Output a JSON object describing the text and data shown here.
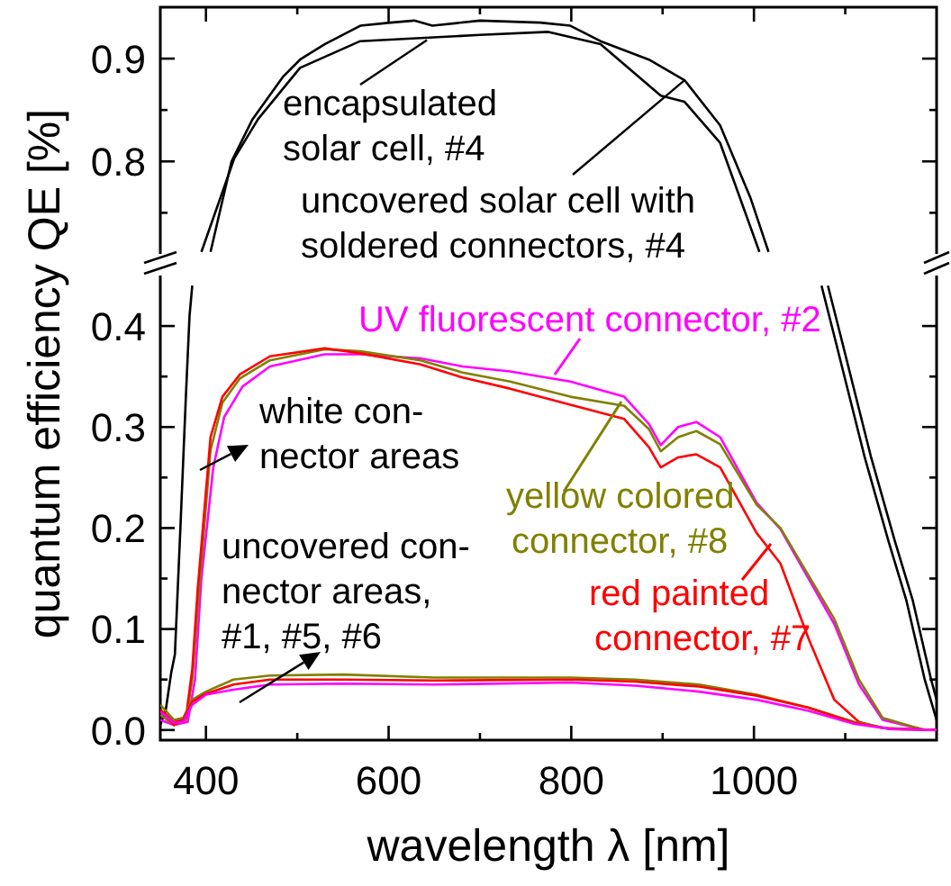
{
  "chart_data": [
    {
      "type": "line",
      "xlim": [
        350,
        1200
      ],
      "ylim": [
        0.71,
        0.95
      ],
      "tick_labels": "y",
      "xticks": [
        400,
        {
          "value": 500,
          "label": null
        },
        600,
        {
          "value": 700,
          "label": null
        },
        800,
        {
          "value": 900,
          "label": null
        },
        1000,
        {
          "value": 1100,
          "label": null
        }
      ],
      "yticks": [
        {
          "value": 0.75,
          "label": null
        },
        0.8,
        {
          "value": 0.85,
          "label": null
        },
        0.9
      ],
      "series": [
        {
          "color": "#000000",
          "x": [
            395,
            431,
            457,
            503,
            569,
            635,
            700,
            775,
            832,
            898,
            924,
            963,
            1006
          ],
          "values": [
            0.712,
            0.803,
            0.841,
            0.891,
            0.917,
            0.92,
            0.923,
            0.926,
            0.914,
            0.864,
            0.858,
            0.818,
            0.712
          ]
        },
        {
          "color": "#000000",
          "x": [
            405,
            428,
            451,
            484,
            503,
            530,
            569,
            602,
            628,
            648,
            700,
            766,
            799,
            832,
            885,
            924,
            963,
            996,
            1016
          ],
          "values": [
            0.712,
            0.8,
            0.841,
            0.882,
            0.899,
            0.914,
            0.932,
            0.935,
            0.937,
            0.932,
            0.937,
            0.935,
            0.932,
            0.917,
            0.899,
            0.879,
            0.835,
            0.765,
            0.712
          ]
        }
      ],
      "annotations": [
        {
          "text": "encapsulated\nsolar cell, #4",
          "x": 642,
          "y": 0.918
        },
        {
          "text": "uncovered solar cell with\nsoldered connectors, #4",
          "x": 924,
          "y": 0.879
        }
      ]
    },
    {
      "type": "line",
      "xlim": [
        350,
        1200
      ],
      "ylim": [
        -0.01,
        0.45
      ],
      "xlabel": "wavelength λ [nm]",
      "ylabel": "quantum efficiency QE [%]",
      "xticks": [
        400,
        {
          "value": 500,
          "label": null
        },
        600,
        {
          "value": 700,
          "label": null
        },
        800,
        {
          "value": 900,
          "label": null
        },
        1000,
        {
          "value": 1100,
          "label": null
        }
      ],
      "yticks": [
        {
          "value": 0,
          "label": "0.0"
        },
        {
          "value": 0.05,
          "label": null
        },
        0.1,
        {
          "value": 0.15,
          "label": null
        },
        0.2,
        {
          "value": 0.25,
          "label": null
        },
        0.3,
        {
          "value": 0.35,
          "label": null
        },
        0.4
      ],
      "series": [
        {
          "color": "#000000",
          "x": [
            350,
            356,
            362,
            366,
            372,
            378,
            382,
            385,
            700,
            1074,
            1088,
            1121,
            1147,
            1167,
            1187,
            1200
          ],
          "values": [
            0.005,
            0.02,
            0.057,
            0.075,
            0.2,
            0.33,
            0.41,
            0.44,
            null,
            0.44,
            0.39,
            0.271,
            0.188,
            0.128,
            0.05,
            0.01
          ]
        },
        {
          "color": "#000000",
          "x": [
            1081,
            1095,
            1128,
            1154,
            1174,
            1194,
            1200
          ],
          "values": [
            0.44,
            0.39,
            0.271,
            0.188,
            0.128,
            0.05,
            0.03
          ]
        },
        {
          "name": "UV fluorescent connector, #2",
          "color": "#ff00ff",
          "x": [
            350,
            365,
            380,
            388,
            395,
            408,
            420,
            440,
            470,
            530,
            569,
            635,
            681,
            733,
            799,
            858,
            885,
            898,
            917,
            937,
            963,
            1003,
            1029,
            1088,
            1115,
            1141,
            1187,
            1200
          ],
          "values": [
            0.01,
            0.005,
            0.008,
            0.05,
            0.15,
            0.26,
            0.31,
            0.34,
            0.36,
            0.372,
            0.372,
            0.368,
            0.36,
            0.355,
            0.345,
            0.33,
            0.303,
            0.282,
            0.3,
            0.305,
            0.29,
            0.225,
            0.199,
            0.105,
            0.045,
            0.01,
            0,
            0
          ]
        },
        {
          "name": "yellow colored connector, #8",
          "color": "#808000",
          "x": [
            350,
            365,
            378,
            385,
            391,
            405,
            418,
            437,
            470,
            530,
            569,
            635,
            681,
            733,
            799,
            858,
            885,
            898,
            917,
            937,
            963,
            1003,
            1029,
            1088,
            1115,
            1141,
            1187,
            1200
          ],
          "values": [
            0.015,
            0.005,
            0.01,
            0.05,
            0.122,
            0.277,
            0.324,
            0.348,
            0.366,
            0.377,
            0.375,
            0.366,
            0.354,
            0.345,
            0.33,
            0.321,
            0.298,
            0.276,
            0.29,
            0.296,
            0.283,
            0.223,
            0.2,
            0.11,
            0.05,
            0.012,
            0,
            0
          ]
        },
        {
          "name": "red painted connector, #7",
          "color": "#ff0000",
          "x": [
            350,
            365,
            378,
            385,
            391,
            405,
            418,
            437,
            470,
            530,
            569,
            635,
            681,
            733,
            799,
            858,
            885,
            898,
            917,
            937,
            963,
            1003,
            1029,
            1060,
            1088,
            1115,
            1141,
            1200
          ],
          "values": [
            0.02,
            0.008,
            0.012,
            0.06,
            0.14,
            0.29,
            0.33,
            0.352,
            0.37,
            0.378,
            0.373,
            0.362,
            0.349,
            0.338,
            0.322,
            0.308,
            0.28,
            0.26,
            0.27,
            0.273,
            0.26,
            0.195,
            0.165,
            0.09,
            0.03,
            0.008,
            0.002,
            0
          ]
        },
        {
          "color": "#808000",
          "x": [
            350,
            365,
            375,
            385,
            400,
            430,
            470,
            550,
            650,
            800,
            870,
            940,
            1003,
            1060,
            1110,
            1150,
            1200
          ],
          "values": [
            0.025,
            0.01,
            0.012,
            0.03,
            0.038,
            0.05,
            0.054,
            0.055,
            0.052,
            0.052,
            0.05,
            0.045,
            0.035,
            0.022,
            0.008,
            0.001,
            0
          ]
        },
        {
          "color": "#ff0000",
          "x": [
            350,
            365,
            375,
            385,
            400,
            430,
            470,
            550,
            650,
            800,
            870,
            940,
            1003,
            1060,
            1110,
            1150,
            1200
          ],
          "values": [
            0.02,
            0.005,
            0.01,
            0.028,
            0.036,
            0.045,
            0.05,
            0.05,
            0.049,
            0.05,
            0.048,
            0.043,
            0.034,
            0.022,
            0.007,
            0.001,
            0
          ]
        },
        {
          "color": "#ff00ff",
          "x": [
            350,
            365,
            375,
            385,
            400,
            430,
            470,
            550,
            650,
            800,
            870,
            940,
            1003,
            1060,
            1110,
            1150,
            1200
          ],
          "values": [
            0.018,
            0.007,
            0.008,
            0.025,
            0.035,
            0.04,
            0.045,
            0.046,
            0.045,
            0.047,
            0.044,
            0.038,
            0.03,
            0.019,
            0.006,
            0.001,
            0
          ]
        }
      ],
      "annotations": [
        "white con-\nnector areas",
        "uncovered con-\nnector areas,\n#1, #5, #6"
      ]
    }
  ]
}
